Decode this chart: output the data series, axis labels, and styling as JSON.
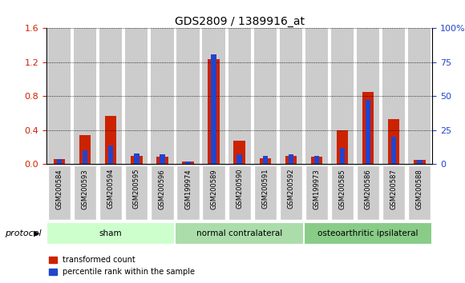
{
  "title": "GDS2809 / 1389916_at",
  "samples": [
    "GSM200584",
    "GSM200593",
    "GSM200594",
    "GSM200595",
    "GSM200596",
    "GSM199974",
    "GSM200589",
    "GSM200590",
    "GSM200591",
    "GSM200592",
    "GSM199973",
    "GSM200585",
    "GSM200586",
    "GSM200587",
    "GSM200588"
  ],
  "red_values": [
    0.06,
    0.34,
    0.57,
    0.1,
    0.09,
    0.03,
    1.24,
    0.28,
    0.07,
    0.1,
    0.09,
    0.4,
    0.85,
    0.53,
    0.05
  ],
  "blue_values_pct": [
    4,
    10,
    14,
    8,
    7,
    2,
    81,
    7,
    6,
    7,
    6,
    12,
    47,
    20,
    3
  ],
  "groups": [
    {
      "label": "sham",
      "start": 0,
      "end": 5,
      "color": "#ccffcc"
    },
    {
      "label": "normal contralateral",
      "start": 5,
      "end": 10,
      "color": "#aaddaa"
    },
    {
      "label": "osteoarthritic ipsilateral",
      "start": 10,
      "end": 15,
      "color": "#88cc88"
    }
  ],
  "ylim_left": [
    0,
    1.6
  ],
  "ylim_right": [
    0,
    100
  ],
  "yticks_left": [
    0,
    0.4,
    0.8,
    1.2,
    1.6
  ],
  "yticks_right": [
    0,
    25,
    50,
    75,
    100
  ],
  "ytick_labels_right": [
    "0",
    "25",
    "50",
    "75",
    "100%"
  ],
  "red_color": "#cc2200",
  "blue_color": "#2244cc",
  "bar_bg_color": "#cccccc",
  "plot_bg_color": "#ffffff",
  "legend_red": "transformed count",
  "legend_blue": "percentile rank within the sample",
  "left_axis_color": "#cc2200",
  "right_axis_color": "#2244cc",
  "protocol_label": "protocol"
}
